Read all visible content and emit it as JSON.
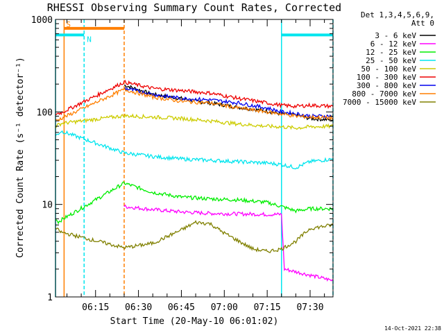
{
  "chart_data": {
    "type": "line",
    "title": "RHESSI Observing Summary Count Rates, Corrected",
    "xlabel": "Start Time (20-May-10 06:01:02)",
    "ylabel": "Corrected Count Rate (s⁻¹ detector⁻¹)",
    "y_scale": "log",
    "ylim": [
      1,
      1000
    ],
    "xlim": [
      "06:01",
      "07:38"
    ],
    "x_ticks": [
      "06:15",
      "06:30",
      "06:45",
      "07:00",
      "07:15",
      "07:30"
    ],
    "y_ticks": [
      "1",
      "10",
      "100",
      "1000"
    ],
    "legend_header": [
      "Det 1,3,4,5,6,9,",
      "Att 0"
    ],
    "legend_position": "right",
    "footer": "14-Oct-2021 22:38",
    "flag_labels": [
      "S",
      "N"
    ],
    "flags": [
      {
        "label": "S",
        "start": "06:04",
        "end": "06:25",
        "level": 800,
        "color": "#ff7f00"
      },
      {
        "label": "N",
        "start": "06:01",
        "end": "06:11",
        "level": 680,
        "color": "#00e5ee"
      },
      {
        "label": "N",
        "start": "07:20",
        "end": "07:38",
        "level": 680,
        "color": "#00e5ee"
      }
    ],
    "markers": [
      {
        "time": "06:01",
        "color": "#00e5ee",
        "style": "solid"
      },
      {
        "time": "06:04",
        "color": "#ff7f00",
        "style": "solid"
      },
      {
        "time": "06:11",
        "color": "#00e5ee",
        "style": "dashed"
      },
      {
        "time": "06:25",
        "color": "#ff7f00",
        "style": "dashed"
      },
      {
        "time": "07:20",
        "color": "#00e5ee",
        "style": "solid"
      },
      {
        "time": "07:38",
        "color": "#00e5ee",
        "style": "dashed"
      }
    ],
    "series": [
      {
        "name": "3 - 6 keV",
        "color": "#000000",
        "x": [
          "06:25",
          "06:35",
          "06:45",
          "06:50",
          "06:55",
          "07:05",
          "07:15",
          "07:20",
          "07:25",
          "07:30",
          "07:35",
          "07:38"
        ],
        "values": [
          195,
          155,
          140,
          130,
          125,
          112,
          102,
          95,
          92,
          85,
          83,
          82
        ]
      },
      {
        "name": "6 - 12 keV",
        "color": "#ff00ff",
        "x": [
          "06:25",
          "06:35",
          "06:45",
          "06:55",
          "07:05",
          "07:15",
          "07:20",
          "07:21",
          "07:38"
        ],
        "values": [
          9.5,
          8.8,
          8.3,
          8.0,
          7.9,
          7.8,
          7.8,
          2.0,
          1.5
        ]
      },
      {
        "name": "12 - 25 keV",
        "color": "#00ee00",
        "x": [
          "06:01",
          "06:02",
          "06:25",
          "06:35",
          "06:45",
          "06:55",
          "07:05",
          "07:15",
          "07:20",
          "07:25",
          "07:30",
          "07:38"
        ],
        "values": [
          7,
          6.5,
          17,
          13.5,
          12,
          11.5,
          11.2,
          10.5,
          9.5,
          8.5,
          9,
          9
        ]
      },
      {
        "name": "25 - 50 keV",
        "color": "#00e5ee",
        "x": [
          "06:01",
          "06:03",
          "06:25",
          "06:35",
          "06:45",
          "06:55",
          "07:05",
          "07:15",
          "07:20",
          "07:25",
          "07:30",
          "07:38"
        ],
        "values": [
          55,
          62,
          36,
          33,
          31,
          30,
          29,
          28,
          27,
          25,
          29,
          31
        ]
      },
      {
        "name": "50 - 100 keV",
        "color": "#cccc00",
        "x": [
          "06:01",
          "06:03",
          "06:25",
          "06:35",
          "06:45",
          "06:55",
          "07:05",
          "07:15",
          "07:20",
          "07:25",
          "07:30",
          "07:38"
        ],
        "values": [
          70,
          75,
          91,
          88,
          85,
          80,
          74,
          70,
          69,
          67,
          69,
          70
        ]
      },
      {
        "name": "100 - 300 keV",
        "color": "#ee0000",
        "x": [
          "06:01",
          "06:03",
          "06:25",
          "06:35",
          "06:45",
          "06:55",
          "07:05",
          "07:15",
          "07:20",
          "07:25",
          "07:30",
          "07:38"
        ],
        "values": [
          95,
          98,
          210,
          180,
          170,
          160,
          140,
          125,
          118,
          115,
          118,
          115
        ]
      },
      {
        "name": "300 - 800 keV",
        "color": "#0000ee",
        "x": [
          "06:25",
          "06:35",
          "06:45",
          "06:55",
          "07:05",
          "07:15",
          "07:20",
          "07:25",
          "07:30",
          "07:38"
        ],
        "values": [
          180,
          155,
          140,
          135,
          125,
          110,
          100,
          96,
          90,
          90
        ]
      },
      {
        "name": "800 - 7000 keV",
        "color": "#ff7f00",
        "x": [
          "06:01",
          "06:03",
          "06:25",
          "06:35",
          "06:45",
          "06:55",
          "07:05",
          "07:15",
          "07:20",
          "07:25",
          "07:30",
          "07:38"
        ],
        "values": [
          80,
          85,
          175,
          145,
          130,
          125,
          110,
          100,
          95,
          90,
          88,
          86
        ]
      },
      {
        "name": "7000 - 15000 keV",
        "color": "#808000",
        "x": [
          "06:01",
          "06:03",
          "06:25",
          "06:35",
          "06:45",
          "06:50",
          "06:55",
          "07:00",
          "07:10",
          "07:15",
          "07:20",
          "07:25",
          "07:30",
          "07:38"
        ],
        "values": [
          5.5,
          5.0,
          3.4,
          3.8,
          5.3,
          6.4,
          6.2,
          4.9,
          3.3,
          3.1,
          3.3,
          4.0,
          5.5,
          6.0
        ]
      }
    ]
  }
}
